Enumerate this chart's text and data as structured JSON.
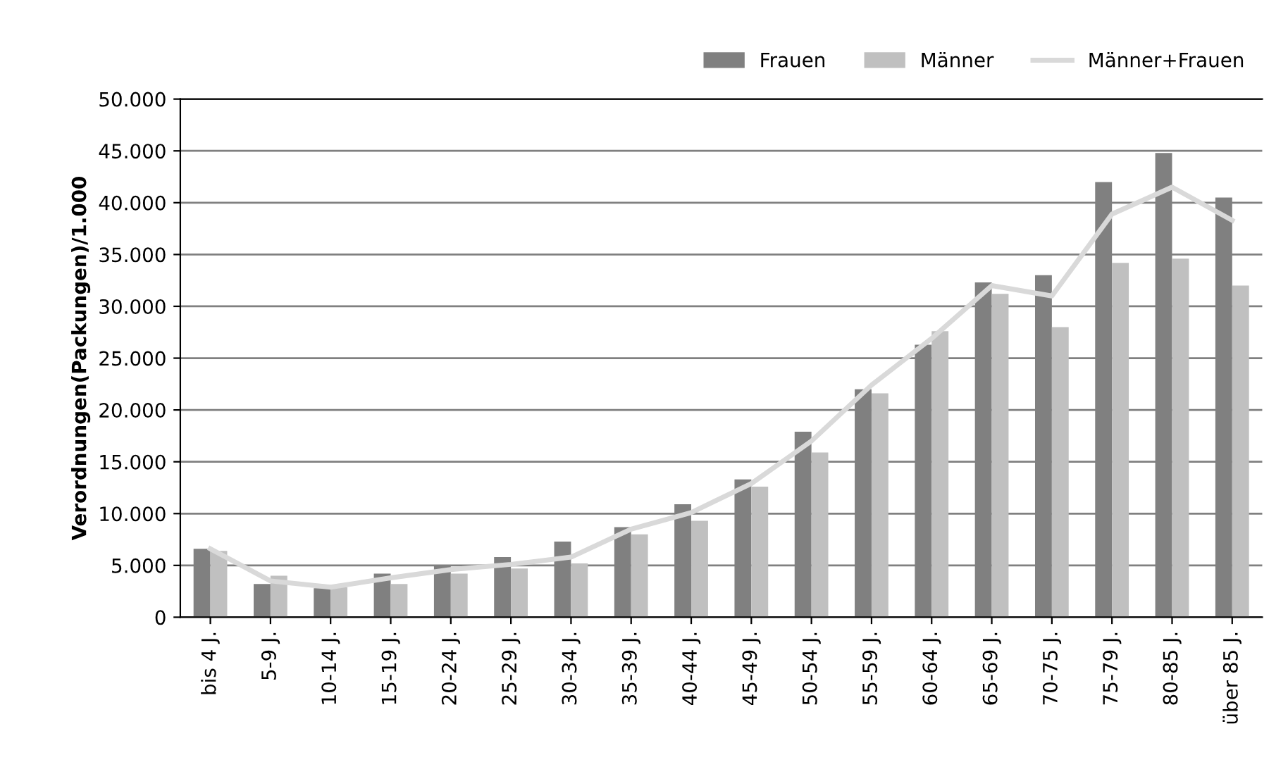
{
  "chart_data": {
    "type": "bar",
    "ylabel": "Verordnungen(Packungen)/1.000",
    "categories": [
      "bis 4 J.",
      "5-9 J.",
      "10-14 J.",
      "15-19 J.",
      "20-24 J.",
      "25-29 J.",
      "30-34 J.",
      "35-39 J.",
      "40-44 J.",
      "45-49 J.",
      "50-54 J.",
      "55-59 J.",
      "60-64 J.",
      "65-69 J.",
      "70-75 J.",
      "75-79 J.",
      "80-85 J.",
      "über 85 J."
    ],
    "series": [
      {
        "name": "Frauen",
        "color": "#808080",
        "values": [
          6600,
          3200,
          2800,
          4200,
          5000,
          5800,
          7300,
          8700,
          10900,
          13300,
          17900,
          22000,
          26300,
          32300,
          33000,
          42000,
          44800,
          40500
        ]
      },
      {
        "name": "Männer",
        "color": "#c0c0c0",
        "values": [
          6400,
          4000,
          2900,
          3200,
          4200,
          4700,
          5200,
          8000,
          9300,
          12600,
          15900,
          21600,
          27600,
          31200,
          28000,
          34200,
          34600,
          32000
        ]
      },
      {
        "name": "Männer+Frauen",
        "type": "line",
        "color": "#d9d9d9",
        "values": [
          6600,
          3500,
          2900,
          3800,
          4600,
          5100,
          5800,
          8500,
          10100,
          12900,
          17000,
          22400,
          26900,
          32000,
          31000,
          38900,
          41500,
          38300
        ]
      }
    ],
    "ylim": [
      0,
      50000
    ],
    "yticks": [
      {
        "value": 0,
        "label": "0"
      },
      {
        "value": 5000,
        "label": "5.000"
      },
      {
        "value": 10000,
        "label": "10.000"
      },
      {
        "value": 15000,
        "label": "15.000"
      },
      {
        "value": 20000,
        "label": "20.000"
      },
      {
        "value": 25000,
        "label": "25.000"
      },
      {
        "value": 30000,
        "label": "30.000"
      },
      {
        "value": 35000,
        "label": "35.000"
      },
      {
        "value": 40000,
        "label": "40.000"
      },
      {
        "value": 45000,
        "label": "45.000"
      },
      {
        "value": 50000,
        "label": "50.000"
      }
    ],
    "grid": "y",
    "legend": "top right"
  }
}
